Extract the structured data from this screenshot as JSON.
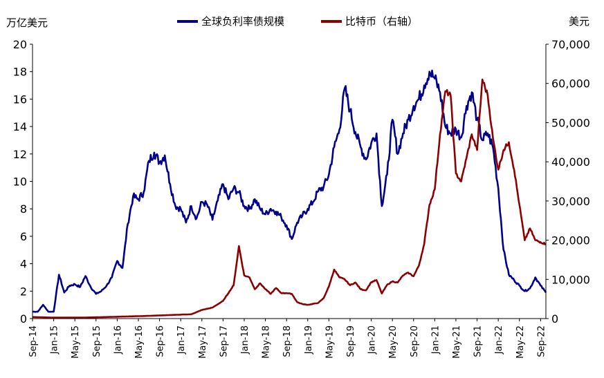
{
  "chart_data": {
    "type": "line",
    "y_axis_label": "万亿美元",
    "y2_axis_label": "美元",
    "ylim": [
      0,
      20
    ],
    "y2lim": [
      0,
      70000
    ],
    "y_ticks": [
      "0",
      "2",
      "4",
      "6",
      "8",
      "10",
      "12",
      "14",
      "16",
      "18",
      "20"
    ],
    "y2_ticks": [
      "0",
      "10,000",
      "20,000",
      "30,000",
      "40,000",
      "50,000",
      "60,000",
      "70,000"
    ],
    "x_ticks": [
      "Sep-14",
      "Jan-15",
      "May-15",
      "Sep-15",
      "Jan-16",
      "May-16",
      "Sep-16",
      "Jan-17",
      "May-17",
      "Sep-17",
      "Jan-18",
      "May-18",
      "Sep-18",
      "Jan-19",
      "May-19",
      "Sep-19",
      "Jan-20",
      "May-20",
      "Sep-20",
      "Jan-21",
      "May-21",
      "Sep-21",
      "Jan-22",
      "May-22",
      "Sep-22"
    ],
    "x_start": "2014-09",
    "x_end": "2022-10",
    "series": [
      {
        "name": "全球负利率债规模",
        "axis": "left",
        "color": "#00008B",
        "points": [
          [
            "2014-09",
            0.5
          ],
          [
            "2014-10",
            0.5
          ],
          [
            "2014-11",
            1.0
          ],
          [
            "2014-12",
            0.5
          ],
          [
            "2015-01",
            0.5
          ],
          [
            "2015-02",
            3.2
          ],
          [
            "2015-03",
            1.9
          ],
          [
            "2015-04",
            2.4
          ],
          [
            "2015-05",
            2.5
          ],
          [
            "2015-06",
            2.3
          ],
          [
            "2015-07",
            3.1
          ],
          [
            "2015-08",
            2.3
          ],
          [
            "2015-09",
            1.8
          ],
          [
            "2015-10",
            2.0
          ],
          [
            "2015-11",
            2.4
          ],
          [
            "2015-12",
            3.0
          ],
          [
            "2016-01",
            4.2
          ],
          [
            "2016-02",
            3.7
          ],
          [
            "2016-03",
            6.9
          ],
          [
            "2016-04",
            8.9
          ],
          [
            "2016-05",
            8.7
          ],
          [
            "2016-06",
            9.2
          ],
          [
            "2016-07",
            11.5
          ],
          [
            "2016-08",
            12.1
          ],
          [
            "2016-09",
            11.4
          ],
          [
            "2016-10",
            11.9
          ],
          [
            "2016-11",
            9.8
          ],
          [
            "2016-12",
            8.2
          ],
          [
            "2017-01",
            8.0
          ],
          [
            "2017-02",
            7.0
          ],
          [
            "2017-03",
            8.2
          ],
          [
            "2017-04",
            7.3
          ],
          [
            "2017-05",
            8.5
          ],
          [
            "2017-06",
            8.3
          ],
          [
            "2017-07",
            7.2
          ],
          [
            "2017-08",
            8.6
          ],
          [
            "2017-09",
            9.8
          ],
          [
            "2017-10",
            8.7
          ],
          [
            "2017-11",
            9.5
          ],
          [
            "2017-12",
            9.2
          ],
          [
            "2018-01",
            8.2
          ],
          [
            "2018-02",
            8.0
          ],
          [
            "2018-03",
            8.7
          ],
          [
            "2018-04",
            8.0
          ],
          [
            "2018-05",
            7.6
          ],
          [
            "2018-06",
            8.0
          ],
          [
            "2018-07",
            7.8
          ],
          [
            "2018-08",
            7.4
          ],
          [
            "2018-09",
            6.8
          ],
          [
            "2018-10",
            5.8
          ],
          [
            "2018-11",
            7.0
          ],
          [
            "2018-12",
            7.5
          ],
          [
            "2019-01",
            8.0
          ],
          [
            "2019-02",
            8.5
          ],
          [
            "2019-03",
            9.3
          ],
          [
            "2019-04",
            9.6
          ],
          [
            "2019-05",
            10.5
          ],
          [
            "2019-06",
            12.5
          ],
          [
            "2019-07",
            13.8
          ],
          [
            "2019-08",
            16.8
          ],
          [
            "2019-09",
            15.2
          ],
          [
            "2019-10",
            13.6
          ],
          [
            "2019-11",
            12.5
          ],
          [
            "2019-12",
            11.6
          ],
          [
            "2020-01",
            12.8
          ],
          [
            "2020-02",
            13.5
          ],
          [
            "2020-03",
            8.2
          ],
          [
            "2020-04",
            10.5
          ],
          [
            "2020-05",
            14.5
          ],
          [
            "2020-06",
            12.0
          ],
          [
            "2020-07",
            13.5
          ],
          [
            "2020-08",
            14.5
          ],
          [
            "2020-09",
            15.5
          ],
          [
            "2020-10",
            16.0
          ],
          [
            "2020-11",
            17.0
          ],
          [
            "2020-12",
            18.0
          ],
          [
            "2021-01",
            17.5
          ],
          [
            "2021-02",
            16.5
          ],
          [
            "2021-03",
            14.0
          ],
          [
            "2021-04",
            13.5
          ],
          [
            "2021-05",
            13.8
          ],
          [
            "2021-06",
            13.2
          ],
          [
            "2021-07",
            15.5
          ],
          [
            "2021-08",
            16.5
          ],
          [
            "2021-09",
            14.5
          ],
          [
            "2021-10",
            13.0
          ],
          [
            "2021-11",
            13.5
          ],
          [
            "2021-12",
            12.5
          ],
          [
            "2022-01",
            9.5
          ],
          [
            "2022-02",
            5.0
          ],
          [
            "2022-03",
            3.2
          ],
          [
            "2022-04",
            2.8
          ],
          [
            "2022-05",
            2.4
          ],
          [
            "2022-06",
            2.0
          ],
          [
            "2022-07",
            2.2
          ],
          [
            "2022-08",
            3.0
          ],
          [
            "2022-09",
            2.4
          ],
          [
            "2022-10",
            1.9
          ]
        ]
      },
      {
        "name": "比特币（右轴）",
        "axis": "right",
        "color": "#8B0000",
        "points": [
          [
            "2014-09",
            400
          ],
          [
            "2015-01",
            250
          ],
          [
            "2015-06",
            240
          ],
          [
            "2015-12",
            430
          ],
          [
            "2016-06",
            650
          ],
          [
            "2016-12",
            950
          ],
          [
            "2017-03",
            1100
          ],
          [
            "2017-05",
            2200
          ],
          [
            "2017-07",
            2800
          ],
          [
            "2017-09",
            4500
          ],
          [
            "2017-11",
            8500
          ],
          [
            "2017-12",
            18500
          ],
          [
            "2018-01",
            11000
          ],
          [
            "2018-02",
            10500
          ],
          [
            "2018-03",
            7500
          ],
          [
            "2018-04",
            9000
          ],
          [
            "2018-05",
            7500
          ],
          [
            "2018-06",
            6300
          ],
          [
            "2018-07",
            7800
          ],
          [
            "2018-08",
            6500
          ],
          [
            "2018-09",
            6500
          ],
          [
            "2018-10",
            6300
          ],
          [
            "2018-11",
            4200
          ],
          [
            "2018-12",
            3700
          ],
          [
            "2019-01",
            3500
          ],
          [
            "2019-03",
            4000
          ],
          [
            "2019-04",
            5200
          ],
          [
            "2019-05",
            8200
          ],
          [
            "2019-06",
            12500
          ],
          [
            "2019-07",
            10500
          ],
          [
            "2019-08",
            10000
          ],
          [
            "2019-09",
            8500
          ],
          [
            "2019-10",
            9200
          ],
          [
            "2019-11",
            7500
          ],
          [
            "2019-12",
            7200
          ],
          [
            "2020-01",
            9300
          ],
          [
            "2020-02",
            9800
          ],
          [
            "2020-03",
            6400
          ],
          [
            "2020-04",
            8600
          ],
          [
            "2020-05",
            9500
          ],
          [
            "2020-06",
            9200
          ],
          [
            "2020-07",
            11000
          ],
          [
            "2020-08",
            11700
          ],
          [
            "2020-09",
            10800
          ],
          [
            "2020-10",
            13500
          ],
          [
            "2020-11",
            19000
          ],
          [
            "2020-12",
            29000
          ],
          [
            "2021-01",
            33000
          ],
          [
            "2021-02",
            47000
          ],
          [
            "2021-03",
            58000
          ],
          [
            "2021-04",
            57000
          ],
          [
            "2021-05",
            37000
          ],
          [
            "2021-06",
            35000
          ],
          [
            "2021-07",
            41000
          ],
          [
            "2021-08",
            47000
          ],
          [
            "2021-09",
            43000
          ],
          [
            "2021-10",
            61000
          ],
          [
            "2021-11",
            57000
          ],
          [
            "2021-12",
            46000
          ],
          [
            "2022-01",
            38000
          ],
          [
            "2022-02",
            43000
          ],
          [
            "2022-03",
            45000
          ],
          [
            "2022-04",
            38000
          ],
          [
            "2022-05",
            29000
          ],
          [
            "2022-06",
            20000
          ],
          [
            "2022-07",
            23000
          ],
          [
            "2022-08",
            20000
          ],
          [
            "2022-09",
            19500
          ],
          [
            "2022-10",
            19000
          ]
        ]
      }
    ]
  }
}
